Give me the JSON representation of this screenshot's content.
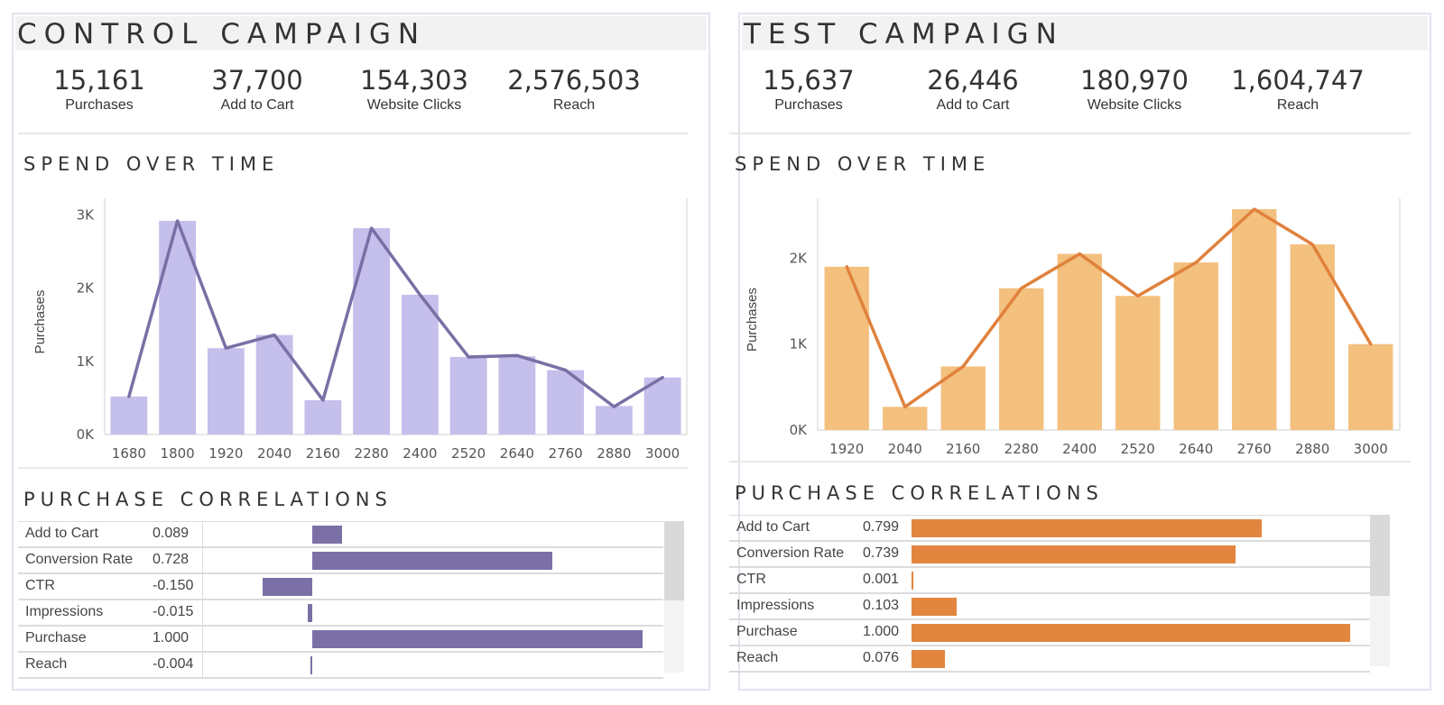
{
  "colors": {
    "control_bar": "#c5bfec",
    "control_line": "#7a6fa5",
    "control_corr": "#7b70a6",
    "test_bar": "#f3c07e",
    "test_line": "#e0813c",
    "test_corr": "#e2863f"
  },
  "control": {
    "title": "CONTROL CAMPAIGN",
    "kpis": [
      {
        "value": "15,161",
        "label": "Purchases"
      },
      {
        "value": "37,700",
        "label": "Add to Cart"
      },
      {
        "value": "154,303",
        "label": "Website Clicks"
      },
      {
        "value": "2,576,503",
        "label": "Reach"
      }
    ],
    "spend_title": "SPEND OVER TIME",
    "correlations_title": "PURCHASE CORRELATIONS",
    "correlations": [
      {
        "name": "Add to Cart",
        "label": "0.089",
        "value": 0.089
      },
      {
        "name": "Conversion Rate",
        "label": "0.728",
        "value": 0.728
      },
      {
        "name": "CTR",
        "label": "-0.150",
        "value": -0.15
      },
      {
        "name": "Impressions",
        "label": "-0.015",
        "value": -0.015
      },
      {
        "name": "Purchase",
        "label": "1.000",
        "value": 1.0
      },
      {
        "name": "Reach",
        "label": "-0.004",
        "value": -0.004
      }
    ]
  },
  "test": {
    "title": "TEST CAMPAIGN",
    "kpis": [
      {
        "value": "15,637",
        "label": "Purchases"
      },
      {
        "value": "26,446",
        "label": "Add to Cart"
      },
      {
        "value": "180,970",
        "label": "Website Clicks"
      },
      {
        "value": "1,604,747",
        "label": "Reach"
      }
    ],
    "spend_title": "SPEND OVER TIME",
    "correlations_title": "PURCHASE CORRELATIONS",
    "correlations": [
      {
        "name": "Add to Cart",
        "label": "0.799",
        "value": 0.799
      },
      {
        "name": "Conversion Rate",
        "label": "0.739",
        "value": 0.739
      },
      {
        "name": "CTR",
        "label": "0.001",
        "value": 0.001
      },
      {
        "name": "Impressions",
        "label": "0.103",
        "value": 0.103
      },
      {
        "name": "Purchase",
        "label": "1.000",
        "value": 1.0
      },
      {
        "name": "Reach",
        "label": "0.076",
        "value": 0.076
      }
    ]
  },
  "chart_data": [
    {
      "type": "bar+line",
      "title": "SPEND OVER TIME",
      "ylabel": "Purchases",
      "xlabel": "",
      "categories": [
        "1680",
        "1800",
        "1920",
        "2040",
        "2160",
        "2280",
        "2400",
        "2520",
        "2640",
        "2760",
        "2880",
        "3000"
      ],
      "bar_values": [
        520,
        2920,
        1180,
        1360,
        470,
        2820,
        1910,
        1060,
        1070,
        880,
        390,
        780
      ],
      "line_values": [
        520,
        2920,
        1180,
        1360,
        470,
        2820,
        1910,
        1060,
        1080,
        880,
        380,
        780
      ],
      "yticks": [
        {
          "value": 0,
          "label": "0K"
        },
        {
          "value": 1000,
          "label": "1K"
        },
        {
          "value": 2000,
          "label": "2K"
        },
        {
          "value": 3000,
          "label": "3K"
        }
      ],
      "ylim": [
        0,
        3080
      ],
      "grid": false
    },
    {
      "type": "bar+line",
      "title": "SPEND OVER TIME",
      "ylabel": "Purchases",
      "xlabel": "",
      "categories": [
        "1920",
        "2040",
        "2160",
        "2280",
        "2400",
        "2520",
        "2640",
        "2760",
        "2880",
        "3000"
      ],
      "bar_values": [
        1900,
        270,
        740,
        1650,
        2050,
        1560,
        1950,
        2570,
        2160,
        1000
      ],
      "line_values": [
        1900,
        270,
        740,
        1650,
        2050,
        1560,
        1950,
        2570,
        2160,
        1000
      ],
      "yticks": [
        {
          "value": 0,
          "label": "0K"
        },
        {
          "value": 1000,
          "label": "1K"
        },
        {
          "value": 2000,
          "label": "2K"
        }
      ],
      "ylim": [
        0,
        2570
      ],
      "grid": false
    },
    {
      "type": "bar",
      "title": "PURCHASE CORRELATIONS",
      "categories": [
        "Add to Cart",
        "Conversion Rate",
        "CTR",
        "Impressions",
        "Purchase",
        "Reach"
      ],
      "values": [
        0.089,
        0.728,
        -0.15,
        -0.015,
        1.0,
        -0.004
      ]
    },
    {
      "type": "bar",
      "title": "PURCHASE CORRELATIONS",
      "categories": [
        "Add to Cart",
        "Conversion Rate",
        "CTR",
        "Impressions",
        "Purchase",
        "Reach"
      ],
      "values": [
        0.799,
        0.739,
        0.001,
        0.103,
        1.0,
        0.076
      ]
    }
  ]
}
